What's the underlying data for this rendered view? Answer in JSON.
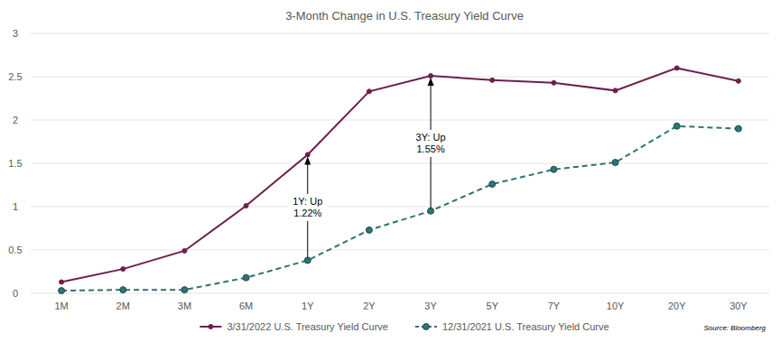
{
  "chart_data": {
    "type": "line",
    "title": "3-Month Change in U.S. Treasury Yield Curve",
    "categories": [
      "1M",
      "2M",
      "3M",
      "6M",
      "1Y",
      "2Y",
      "3Y",
      "5Y",
      "7Y",
      "10Y",
      "20Y",
      "30Y"
    ],
    "series": [
      {
        "name": "3/31/2022 U.S. Treasury Yield Curve",
        "color": "#6e1f4c",
        "marker": "circle",
        "line_style": "solid",
        "values": [
          0.13,
          0.28,
          0.49,
          1.01,
          1.6,
          2.33,
          2.51,
          2.46,
          2.43,
          2.34,
          2.6,
          2.45
        ]
      },
      {
        "name": "12/31/2021 U.S. Treasury Yield Curve",
        "color": "#2f7373",
        "marker": "circle",
        "line_style": "dashed",
        "values": [
          0.03,
          0.04,
          0.04,
          0.18,
          0.38,
          0.73,
          0.95,
          1.26,
          1.43,
          1.51,
          1.93,
          1.9
        ]
      }
    ],
    "annotations": [
      {
        "category": "1Y",
        "text": [
          "1Y: Up",
          "1.22%"
        ]
      },
      {
        "category": "3Y",
        "text": [
          "3Y: Up",
          "1.55%"
        ]
      }
    ],
    "source": "Source: Bloomberg",
    "ylim": [
      0,
      3
    ],
    "yticks": [
      0,
      0.5,
      1,
      1.5,
      2,
      2.5,
      3
    ],
    "grid": true,
    "legend": "bottom"
  }
}
